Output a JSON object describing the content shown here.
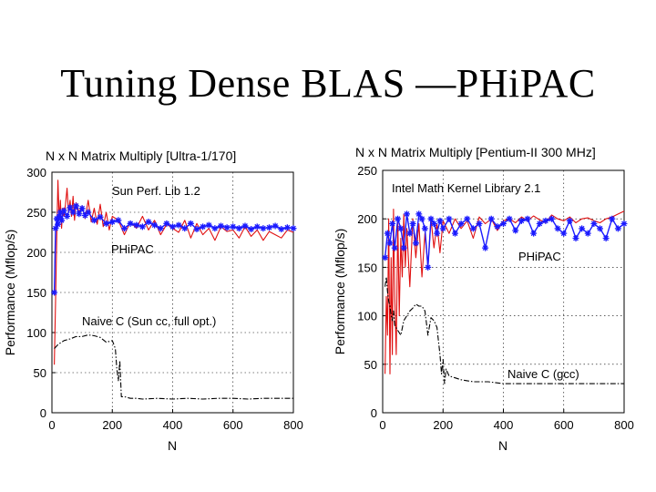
{
  "slide": {
    "title": "Tuning Dense BLAS —PHiPAC"
  },
  "chart_data": [
    {
      "type": "line",
      "title": "N x N Matrix Multiply [Ultra-1/170]",
      "xlabel": "N",
      "ylabel": "Performance (Mflop/s)",
      "xlim": [
        0,
        800
      ],
      "ylim": [
        0,
        300
      ],
      "xticks": [
        0,
        200,
        400,
        600,
        800
      ],
      "yticks": [
        0,
        50,
        100,
        150,
        200,
        250,
        300
      ],
      "grid": true,
      "annotations": [
        "Sun Perf. Lib 1.2",
        "PHiPAC",
        "Naive C (Sun cc, full opt.)"
      ],
      "series": [
        {
          "name": "Sun Perf. Lib 1.2",
          "color": "#e01010",
          "style": "solid",
          "x": [
            8,
            12,
            16,
            20,
            24,
            28,
            32,
            36,
            40,
            45,
            50,
            55,
            60,
            65,
            70,
            75,
            80,
            90,
            100,
            110,
            120,
            130,
            140,
            150,
            160,
            170,
            180,
            190,
            200,
            220,
            240,
            260,
            280,
            300,
            320,
            340,
            360,
            380,
            400,
            420,
            440,
            460,
            480,
            500,
            520,
            540,
            560,
            580,
            600,
            620,
            640,
            660,
            680,
            700,
            720,
            740,
            760,
            780,
            800
          ],
          "y": [
            60,
            140,
            220,
            290,
            240,
            265,
            230,
            255,
            245,
            260,
            280,
            250,
            265,
            245,
            270,
            240,
            262,
            250,
            258,
            242,
            265,
            238,
            255,
            235,
            260,
            232,
            250,
            228,
            245,
            240,
            222,
            238,
            230,
            245,
            228,
            240,
            222,
            235,
            230,
            225,
            240,
            218,
            236,
            222,
            230,
            215,
            232,
            226,
            228,
            218,
            232,
            220,
            228,
            215,
            226,
            222,
            218,
            228,
            225
          ]
        },
        {
          "name": "PHiPAC",
          "color": "#1a1aff",
          "style": "solid-star",
          "x": [
            8,
            12,
            16,
            20,
            24,
            28,
            32,
            40,
            50,
            60,
            70,
            80,
            90,
            100,
            110,
            120,
            140,
            160,
            180,
            200,
            220,
            240,
            260,
            280,
            300,
            320,
            340,
            360,
            380,
            400,
            420,
            440,
            460,
            480,
            500,
            520,
            540,
            560,
            580,
            600,
            620,
            640,
            660,
            680,
            700,
            720,
            740,
            760,
            780,
            800
          ],
          "y": [
            150,
            230,
            242,
            235,
            245,
            250,
            240,
            252,
            245,
            256,
            250,
            258,
            248,
            255,
            246,
            250,
            240,
            244,
            236,
            238,
            240,
            230,
            236,
            234,
            232,
            238,
            234,
            230,
            236,
            232,
            234,
            230,
            236,
            229,
            232,
            234,
            230,
            233,
            231,
            232,
            230,
            233,
            229,
            232,
            230,
            231,
            233,
            229,
            231,
            230
          ]
        },
        {
          "name": "Naive C (Sun cc, full opt.)",
          "color": "#000000",
          "style": "dash-dot",
          "x": [
            8,
            20,
            40,
            60,
            80,
            100,
            120,
            140,
            160,
            180,
            200,
            210,
            215,
            220,
            225,
            230,
            240,
            260,
            280,
            300,
            350,
            400,
            450,
            500,
            550,
            600,
            650,
            700,
            750,
            800
          ],
          "y": [
            80,
            85,
            90,
            92,
            95,
            95,
            97,
            96,
            94,
            88,
            90,
            80,
            55,
            40,
            65,
            20,
            20,
            18,
            18,
            17,
            18,
            17,
            18,
            17,
            18,
            18,
            17,
            18,
            18,
            18
          ]
        }
      ]
    },
    {
      "type": "line",
      "title": "N x N Matrix Multiply [Pentium-II 300 MHz]",
      "xlabel": "N",
      "ylabel": "Performance (Mflop/s)",
      "xlim": [
        0,
        800
      ],
      "ylim": [
        0,
        250
      ],
      "xticks": [
        0,
        200,
        400,
        600,
        800
      ],
      "yticks": [
        0,
        50,
        100,
        150,
        200,
        250
      ],
      "grid": true,
      "annotations": [
        "Intel Math Kernel Library 2.1",
        "PHiPAC",
        "Naive C (gcc)"
      ],
      "series": [
        {
          "name": "Intel Math Kernel Library 2.1",
          "color": "#e01010",
          "style": "solid",
          "x": [
            8,
            12,
            16,
            20,
            24,
            28,
            32,
            36,
            40,
            45,
            50,
            55,
            60,
            65,
            70,
            75,
            80,
            90,
            100,
            110,
            120,
            130,
            140,
            150,
            160,
            170,
            180,
            190,
            200,
            220,
            240,
            260,
            280,
            300,
            320,
            340,
            360,
            380,
            400,
            420,
            440,
            460,
            480,
            500,
            520,
            540,
            560,
            580,
            600,
            620,
            640,
            660,
            680,
            700,
            720,
            740,
            760,
            780,
            800
          ],
          "y": [
            40,
            120,
            80,
            200,
            40,
            160,
            60,
            210,
            120,
            60,
            200,
            100,
            180,
            140,
            205,
            150,
            190,
            130,
            200,
            160,
            195,
            140,
            185,
            150,
            200,
            170,
            195,
            165,
            198,
            185,
            200,
            190,
            198,
            180,
            202,
            195,
            200,
            188,
            198,
            200,
            196,
            202,
            198,
            203,
            199,
            196,
            204,
            200,
            198,
            202,
            196,
            200,
            201,
            198,
            196,
            200,
            202,
            205,
            208
          ]
        },
        {
          "name": "PHiPAC",
          "color": "#1a1aff",
          "style": "solid-star",
          "x": [
            8,
            16,
            24,
            32,
            40,
            50,
            60,
            70,
            80,
            90,
            100,
            110,
            120,
            130,
            140,
            150,
            160,
            170,
            180,
            190,
            200,
            220,
            240,
            260,
            280,
            300,
            320,
            340,
            360,
            380,
            400,
            420,
            440,
            460,
            480,
            500,
            520,
            540,
            560,
            580,
            600,
            620,
            640,
            660,
            680,
            700,
            720,
            740,
            760,
            780,
            800
          ],
          "y": [
            160,
            185,
            175,
            195,
            170,
            200,
            190,
            170,
            205,
            185,
            195,
            175,
            205,
            200,
            190,
            150,
            200,
            195,
            185,
            198,
            190,
            200,
            185,
            195,
            200,
            190,
            195,
            170,
            200,
            192,
            195,
            200,
            188,
            198,
            200,
            185,
            195,
            198,
            200,
            190,
            185,
            198,
            180,
            190,
            185,
            195,
            190,
            180,
            200,
            190,
            195
          ]
        },
        {
          "name": "Naive C (gcc)",
          "color": "#000000",
          "style": "dash-dot",
          "x": [
            8,
            12,
            16,
            20,
            24,
            28,
            32,
            36,
            40,
            50,
            60,
            70,
            80,
            90,
            100,
            110,
            120,
            130,
            140,
            150,
            160,
            170,
            180,
            190,
            195,
            200,
            205,
            210,
            220,
            240,
            260,
            280,
            300,
            350,
            400,
            450,
            500,
            550,
            600,
            650,
            700,
            750,
            800
          ],
          "y": [
            130,
            140,
            125,
            115,
            110,
            100,
            95,
            105,
            90,
            85,
            80,
            95,
            100,
            105,
            108,
            112,
            110,
            110,
            105,
            80,
            98,
            95,
            88,
            60,
            40,
            55,
            30,
            45,
            38,
            36,
            34,
            33,
            32,
            32,
            30,
            30,
            30,
            30,
            30,
            30,
            30,
            30,
            30
          ]
        }
      ]
    }
  ]
}
